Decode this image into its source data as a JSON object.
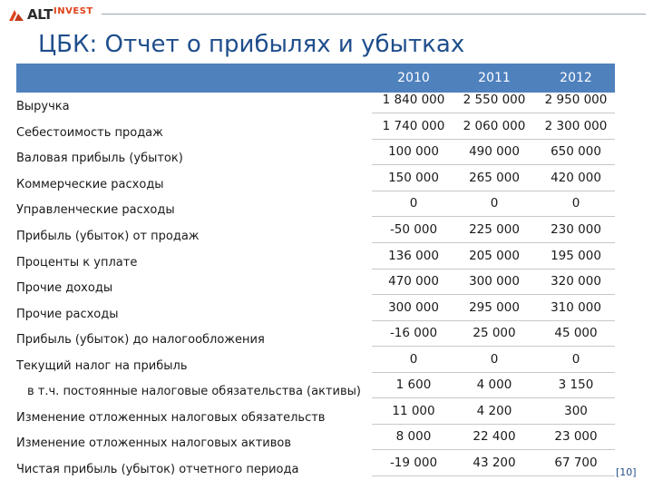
{
  "logo": {
    "brand": "ALT",
    "sub": "INVEST"
  },
  "title": "ЦБК: Отчет о прибылях и убытках",
  "years": [
    "2010",
    "2011",
    "2012"
  ],
  "rows": [
    {
      "label": "Выручка",
      "values": [
        "1 840 000",
        "2 550 000",
        "2 950 000"
      ]
    },
    {
      "label": "Себестоимость продаж",
      "values": [
        "1 740 000",
        "2 060 000",
        "2 300 000"
      ]
    },
    {
      "label": "Валовая прибыль (убыток)",
      "values": [
        "100 000",
        "490 000",
        "650 000"
      ]
    },
    {
      "label": "Коммерческие расходы",
      "values": [
        "150 000",
        "265 000",
        "420 000"
      ]
    },
    {
      "label": "Управленческие расходы",
      "values": [
        "0",
        "0",
        "0"
      ]
    },
    {
      "label": "Прибыль (убыток) от продаж",
      "values": [
        "-50 000",
        "225 000",
        "230 000"
      ]
    },
    {
      "label": "Проценты к уплате",
      "values": [
        "136 000",
        "205 000",
        "195 000"
      ]
    },
    {
      "label": "Прочие доходы",
      "values": [
        "470 000",
        "300 000",
        "320 000"
      ]
    },
    {
      "label": "Прочие расходы",
      "values": [
        "300 000",
        "295 000",
        "310 000"
      ]
    },
    {
      "label": "Прибыль (убыток) до налогообложения",
      "values": [
        "-16 000",
        "25 000",
        "45 000"
      ]
    },
    {
      "label": "Текущий налог на прибыль",
      "values": [
        "0",
        "0",
        "0"
      ]
    },
    {
      "label": "в т.ч. постоянные налоговые обязательства (активы)",
      "values": [
        "1 600",
        "4 000",
        "3 150"
      ]
    },
    {
      "label": "Изменение отложенных налоговых обязательств",
      "values": [
        "11 000",
        "4 200",
        "300"
      ]
    },
    {
      "label": "Изменение отложенных налоговых активов",
      "values": [
        "8 000",
        "22 400",
        "23 000"
      ]
    },
    {
      "label": "Чистая прибыль (убыток) отчетного периода",
      "values": [
        "-19 000",
        "43 200",
        "67 700"
      ]
    }
  ],
  "footnote": "[10]",
  "colors": {
    "title": "#1f4e8c",
    "header_band": "#4f81bd",
    "accent": "#e0431b"
  }
}
